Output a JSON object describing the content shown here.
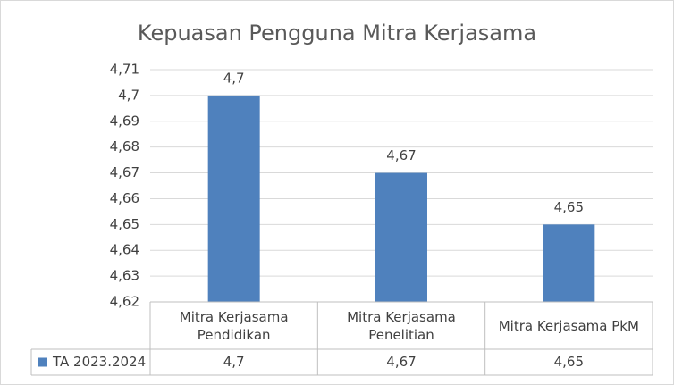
{
  "chart_data": {
    "type": "bar",
    "title": "Kepuasan Pengguna Mitra Kerjasama",
    "categories": [
      "Mitra Kerjasama Pendidikan",
      "Mitra Kerjasama Penelitian",
      "Mitra Kerjasama PkM"
    ],
    "series": [
      {
        "name": "TA 2023.2024",
        "color": "#4f81bd",
        "values": [
          4.7,
          4.67,
          4.65
        ],
        "value_labels": [
          "4,7",
          "4,67",
          "4,65"
        ]
      }
    ],
    "ylim": [
      4.62,
      4.71
    ],
    "yticks": [
      {
        "value": 4.62,
        "label": "4,62"
      },
      {
        "value": 4.63,
        "label": "4,63"
      },
      {
        "value": 4.64,
        "label": "4,64"
      },
      {
        "value": 4.65,
        "label": "4,65"
      },
      {
        "value": 4.66,
        "label": "4,66"
      },
      {
        "value": 4.67,
        "label": "4,67"
      },
      {
        "value": 4.68,
        "label": "4,68"
      },
      {
        "value": 4.69,
        "label": "4,69"
      },
      {
        "value": 4.7,
        "label": "4,7"
      },
      {
        "value": 4.71,
        "label": "4,71"
      }
    ],
    "grid": true,
    "data_table": true
  }
}
